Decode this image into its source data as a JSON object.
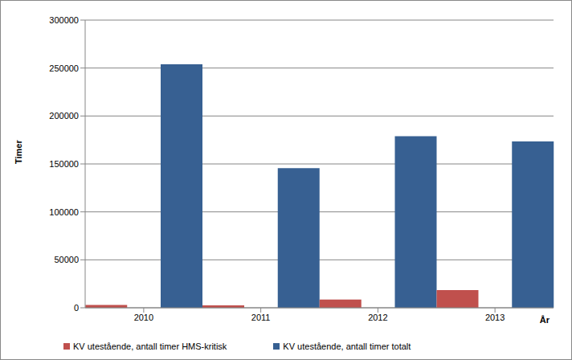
{
  "chart_data": {
    "type": "bar",
    "x_label": "År",
    "y_label": "Timer",
    "categories": [
      "2010",
      "2011",
      "2012",
      "2013"
    ],
    "series": [
      {
        "name": "KV utestående, antall timer HMS-kritisk",
        "color": "#c0504d",
        "values": [
          3000,
          2500,
          8500,
          18500
        ]
      },
      {
        "name": "KV utestående, antall timer totalt",
        "color": "#376092",
        "values": [
          254000,
          145500,
          179000,
          173500
        ]
      }
    ],
    "ylim": [
      0,
      300000
    ],
    "yticks": [
      0,
      50000,
      100000,
      150000,
      200000,
      250000,
      300000
    ],
    "grid": true,
    "legend": "bottom"
  }
}
